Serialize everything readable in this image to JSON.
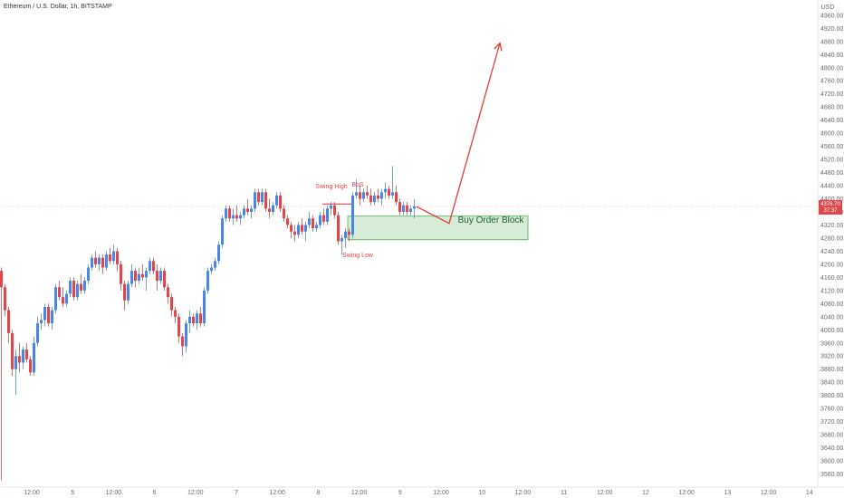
{
  "header": {
    "title": "Ethereum / U.S. Dollar, 1h, BITSTAMP",
    "currency": "USD"
  },
  "price_label": {
    "value": "4376.70",
    "countdown": "37:37"
  },
  "annotations": {
    "swing_high": "Swing High",
    "bos": "BoS",
    "swing_low": "Swing Low",
    "order_block": "Buy Order Block"
  },
  "colors": {
    "up": "#4a86e8",
    "down": "#e0464a",
    "zone_fill": "#c8e6c9",
    "zone_border": "#4caf50",
    "arrow": "#e53935"
  },
  "chart_data": {
    "type": "candlestick",
    "title": "Ethereum / U.S. Dollar, 1h, BITSTAMP",
    "ylabel": "USD",
    "ylim": [
      3520,
      4990
    ],
    "y_ticks": [
      3560,
      3600,
      3640,
      3680,
      3720,
      3760,
      3800,
      3840,
      3880,
      3920,
      3960,
      4000,
      4040,
      4080,
      4120,
      4160,
      4200,
      4240,
      4280,
      4320,
      4360,
      4400,
      4440,
      4480,
      4520,
      4560,
      4600,
      4640,
      4680,
      4720,
      4760,
      4800,
      4840,
      4880,
      4920,
      4960
    ],
    "x_ticks": [
      "12:00",
      "5",
      "12:00",
      "6",
      "12:00",
      "7",
      "12:00",
      "8",
      "12:00",
      "9",
      "12:00",
      "10",
      "12:00",
      "11",
      "12:00",
      "12",
      "12:00",
      "13",
      "12:00",
      "14"
    ],
    "candles": [
      {
        "o": 4180,
        "h": 4190,
        "l": 3540,
        "c": 4130
      },
      {
        "o": 4130,
        "h": 4140,
        "l": 4040,
        "c": 4060
      },
      {
        "o": 4060,
        "h": 4070,
        "l": 3960,
        "c": 3990
      },
      {
        "o": 3990,
        "h": 4000,
        "l": 3860,
        "c": 3880
      },
      {
        "o": 3880,
        "h": 3940,
        "l": 3800,
        "c": 3920
      },
      {
        "o": 3920,
        "h": 3960,
        "l": 3870,
        "c": 3900
      },
      {
        "o": 3900,
        "h": 3950,
        "l": 3880,
        "c": 3940
      },
      {
        "o": 3940,
        "h": 3960,
        "l": 3900,
        "c": 3910
      },
      {
        "o": 3910,
        "h": 3920,
        "l": 3860,
        "c": 3870
      },
      {
        "o": 3870,
        "h": 3980,
        "l": 3860,
        "c": 3960
      },
      {
        "o": 3960,
        "h": 4040,
        "l": 3950,
        "c": 4020
      },
      {
        "o": 4020,
        "h": 4050,
        "l": 4000,
        "c": 4030
      },
      {
        "o": 4030,
        "h": 4080,
        "l": 4010,
        "c": 4070
      },
      {
        "o": 4070,
        "h": 4080,
        "l": 4010,
        "c": 4020
      },
      {
        "o": 4020,
        "h": 4070,
        "l": 4000,
        "c": 4060
      },
      {
        "o": 4060,
        "h": 4140,
        "l": 4050,
        "c": 4130
      },
      {
        "o": 4130,
        "h": 4150,
        "l": 4090,
        "c": 4100
      },
      {
        "o": 4100,
        "h": 4130,
        "l": 4070,
        "c": 4080
      },
      {
        "o": 4080,
        "h": 4120,
        "l": 4070,
        "c": 4110
      },
      {
        "o": 4110,
        "h": 4160,
        "l": 4100,
        "c": 4150
      },
      {
        "o": 4150,
        "h": 4160,
        "l": 4090,
        "c": 4100
      },
      {
        "o": 4100,
        "h": 4150,
        "l": 4090,
        "c": 4140
      },
      {
        "o": 4140,
        "h": 4170,
        "l": 4110,
        "c": 4120
      },
      {
        "o": 4120,
        "h": 4160,
        "l": 4110,
        "c": 4150
      },
      {
        "o": 4150,
        "h": 4200,
        "l": 4140,
        "c": 4190
      },
      {
        "o": 4190,
        "h": 4230,
        "l": 4180,
        "c": 4220
      },
      {
        "o": 4220,
        "h": 4240,
        "l": 4190,
        "c": 4200
      },
      {
        "o": 4200,
        "h": 4230,
        "l": 4180,
        "c": 4220
      },
      {
        "o": 4220,
        "h": 4230,
        "l": 4170,
        "c": 4190
      },
      {
        "o": 4190,
        "h": 4240,
        "l": 4180,
        "c": 4230
      },
      {
        "o": 4230,
        "h": 4250,
        "l": 4200,
        "c": 4210
      },
      {
        "o": 4210,
        "h": 4260,
        "l": 4200,
        "c": 4240
      },
      {
        "o": 4240,
        "h": 4250,
        "l": 4180,
        "c": 4200
      },
      {
        "o": 4200,
        "h": 4210,
        "l": 4120,
        "c": 4140
      },
      {
        "o": 4140,
        "h": 4150,
        "l": 4060,
        "c": 4090
      },
      {
        "o": 4090,
        "h": 4150,
        "l": 4080,
        "c": 4140
      },
      {
        "o": 4140,
        "h": 4200,
        "l": 4130,
        "c": 4180
      },
      {
        "o": 4180,
        "h": 4190,
        "l": 4130,
        "c": 4150
      },
      {
        "o": 4150,
        "h": 4190,
        "l": 4140,
        "c": 4170
      },
      {
        "o": 4170,
        "h": 4200,
        "l": 4150,
        "c": 4160
      },
      {
        "o": 4160,
        "h": 4190,
        "l": 4120,
        "c": 4180
      },
      {
        "o": 4180,
        "h": 4220,
        "l": 4170,
        "c": 4210
      },
      {
        "o": 4210,
        "h": 4220,
        "l": 4170,
        "c": 4180
      },
      {
        "o": 4180,
        "h": 4200,
        "l": 4120,
        "c": 4150
      },
      {
        "o": 4150,
        "h": 4190,
        "l": 4140,
        "c": 4180
      },
      {
        "o": 4180,
        "h": 4190,
        "l": 4120,
        "c": 4130
      },
      {
        "o": 4130,
        "h": 4140,
        "l": 4080,
        "c": 4100
      },
      {
        "o": 4100,
        "h": 4110,
        "l": 4040,
        "c": 4060
      },
      {
        "o": 4060,
        "h": 4070,
        "l": 4020,
        "c": 4040
      },
      {
        "o": 4040,
        "h": 4050,
        "l": 3960,
        "c": 3980
      },
      {
        "o": 3980,
        "h": 3990,
        "l": 3920,
        "c": 3950
      },
      {
        "o": 3950,
        "h": 4030,
        "l": 3930,
        "c": 4020
      },
      {
        "o": 4020,
        "h": 4060,
        "l": 3990,
        "c": 4040
      },
      {
        "o": 4040,
        "h": 4050,
        "l": 4010,
        "c": 4020
      },
      {
        "o": 4020,
        "h": 4060,
        "l": 4000,
        "c": 4050
      },
      {
        "o": 4050,
        "h": 4070,
        "l": 4010,
        "c": 4020
      },
      {
        "o": 4020,
        "h": 4130,
        "l": 4010,
        "c": 4120
      },
      {
        "o": 4120,
        "h": 4190,
        "l": 4110,
        "c": 4180
      },
      {
        "o": 4180,
        "h": 4200,
        "l": 4170,
        "c": 4190
      },
      {
        "o": 4190,
        "h": 4220,
        "l": 4180,
        "c": 4210
      },
      {
        "o": 4210,
        "h": 4270,
        "l": 4200,
        "c": 4260
      },
      {
        "o": 4260,
        "h": 4350,
        "l": 4250,
        "c": 4340
      },
      {
        "o": 4340,
        "h": 4380,
        "l": 4330,
        "c": 4370
      },
      {
        "o": 4370,
        "h": 4380,
        "l": 4330,
        "c": 4340
      },
      {
        "o": 4340,
        "h": 4370,
        "l": 4320,
        "c": 4350
      },
      {
        "o": 4350,
        "h": 4380,
        "l": 4330,
        "c": 4340
      },
      {
        "o": 4340,
        "h": 4360,
        "l": 4320,
        "c": 4350
      },
      {
        "o": 4350,
        "h": 4380,
        "l": 4340,
        "c": 4370
      },
      {
        "o": 4370,
        "h": 4400,
        "l": 4350,
        "c": 4360
      },
      {
        "o": 4360,
        "h": 4380,
        "l": 4340,
        "c": 4370
      },
      {
        "o": 4370,
        "h": 4430,
        "l": 4360,
        "c": 4420
      },
      {
        "o": 4420,
        "h": 4430,
        "l": 4380,
        "c": 4390
      },
      {
        "o": 4390,
        "h": 4430,
        "l": 4380,
        "c": 4420
      },
      {
        "o": 4420,
        "h": 4430,
        "l": 4360,
        "c": 4370
      },
      {
        "o": 4370,
        "h": 4400,
        "l": 4340,
        "c": 4360
      },
      {
        "o": 4360,
        "h": 4390,
        "l": 4350,
        "c": 4380
      },
      {
        "o": 4380,
        "h": 4420,
        "l": 4370,
        "c": 4410
      },
      {
        "o": 4410,
        "h": 4420,
        "l": 4360,
        "c": 4370
      },
      {
        "o": 4370,
        "h": 4380,
        "l": 4330,
        "c": 4340
      },
      {
        "o": 4340,
        "h": 4350,
        "l": 4310,
        "c": 4320
      },
      {
        "o": 4320,
        "h": 4330,
        "l": 4280,
        "c": 4300
      },
      {
        "o": 4300,
        "h": 4320,
        "l": 4270,
        "c": 4290
      },
      {
        "o": 4290,
        "h": 4330,
        "l": 4280,
        "c": 4320
      },
      {
        "o": 4320,
        "h": 4340,
        "l": 4290,
        "c": 4300
      },
      {
        "o": 4300,
        "h": 4330,
        "l": 4270,
        "c": 4320
      },
      {
        "o": 4320,
        "h": 4360,
        "l": 4310,
        "c": 4340
      },
      {
        "o": 4340,
        "h": 4350,
        "l": 4300,
        "c": 4310
      },
      {
        "o": 4310,
        "h": 4330,
        "l": 4300,
        "c": 4320
      },
      {
        "o": 4320,
        "h": 4360,
        "l": 4310,
        "c": 4350
      },
      {
        "o": 4350,
        "h": 4370,
        "l": 4320,
        "c": 4330
      },
      {
        "o": 4330,
        "h": 4380,
        "l": 4320,
        "c": 4370
      },
      {
        "o": 4370,
        "h": 4390,
        "l": 4350,
        "c": 4380
      },
      {
        "o": 4380,
        "h": 4390,
        "l": 4340,
        "c": 4350
      },
      {
        "o": 4350,
        "h": 4360,
        "l": 4260,
        "c": 4270
      },
      {
        "o": 4270,
        "h": 4290,
        "l": 4230,
        "c": 4280
      },
      {
        "o": 4280,
        "h": 4310,
        "l": 4250,
        "c": 4300
      },
      {
        "o": 4300,
        "h": 4310,
        "l": 4270,
        "c": 4290
      },
      {
        "o": 4290,
        "h": 4420,
        "l": 4280,
        "c": 4410
      },
      {
        "o": 4410,
        "h": 4460,
        "l": 4400,
        "c": 4420
      },
      {
        "o": 4420,
        "h": 4440,
        "l": 4380,
        "c": 4400
      },
      {
        "o": 4400,
        "h": 4430,
        "l": 4390,
        "c": 4420
      },
      {
        "o": 4420,
        "h": 4440,
        "l": 4400,
        "c": 4410
      },
      {
        "o": 4410,
        "h": 4430,
        "l": 4380,
        "c": 4390
      },
      {
        "o": 4390,
        "h": 4420,
        "l": 4380,
        "c": 4410
      },
      {
        "o": 4410,
        "h": 4430,
        "l": 4390,
        "c": 4400
      },
      {
        "o": 4400,
        "h": 4430,
        "l": 4380,
        "c": 4420
      },
      {
        "o": 4420,
        "h": 4450,
        "l": 4400,
        "c": 4430
      },
      {
        "o": 4430,
        "h": 4440,
        "l": 4400,
        "c": 4410
      },
      {
        "o": 4410,
        "h": 4500,
        "l": 4400,
        "c": 4420
      },
      {
        "o": 4420,
        "h": 4440,
        "l": 4380,
        "c": 4390
      },
      {
        "o": 4390,
        "h": 4400,
        "l": 4350,
        "c": 4360
      },
      {
        "o": 4360,
        "h": 4390,
        "l": 4350,
        "c": 4380
      },
      {
        "o": 4380,
        "h": 4390,
        "l": 4350,
        "c": 4360
      },
      {
        "o": 4360,
        "h": 4380,
        "l": 4350,
        "c": 4370
      },
      {
        "o": 4370,
        "h": 4400,
        "l": 4340,
        "c": 4376.7
      }
    ],
    "order_block": {
      "top": 4347,
      "bottom": 4275
    },
    "swing_high_level": 4384,
    "projection": [
      {
        "bar": 115,
        "price": 4376
      },
      {
        "bar": 124,
        "price": 4325
      },
      {
        "bar": 138,
        "price": 4875
      }
    ],
    "last_price": 4376.7,
    "grid": false
  }
}
